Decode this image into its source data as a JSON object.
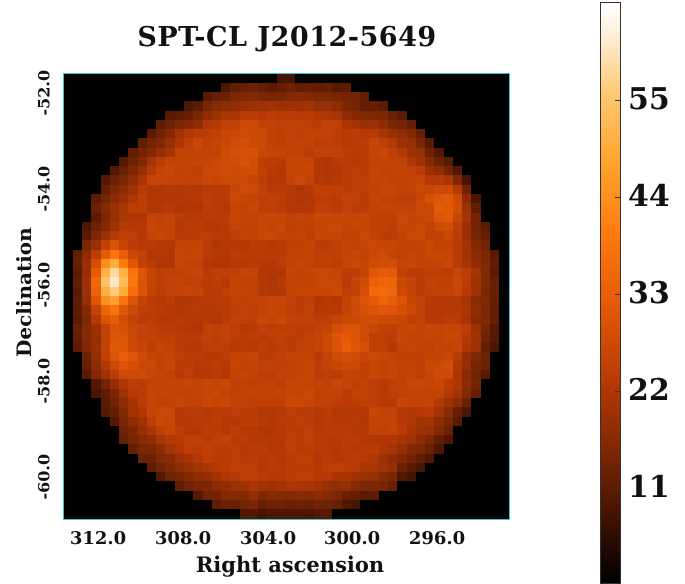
{
  "chart_data": {
    "type": "heatmap",
    "title": "SPT-CL J2012-5649",
    "xlabel": "Right ascension",
    "ylabel": "Declination",
    "x_ticks": [
      "312.0",
      "308.0",
      "304.0",
      "300.0",
      "296.0"
    ],
    "y_ticks": [
      "-52.0",
      "-54.0",
      "-56.0",
      "-58.0",
      "-60.0"
    ],
    "xlim": [
      313.8,
      292.2
    ],
    "ylim": [
      -61.6,
      -51.3
    ],
    "colorbar": {
      "ticks": [
        "11",
        "22",
        "33",
        "44",
        "55"
      ],
      "range": [
        0,
        60
      ],
      "colormap": "gist_heat"
    },
    "map": {
      "background": 14,
      "disk_level": 22,
      "disk_center": [
        303.0,
        -56.5
      ],
      "disk_radius_deg": [
        10.4,
        5.1
      ],
      "sources": [
        {
          "ra": 311.6,
          "dec": -56.1,
          "peak": 60
        },
        {
          "ra": 294.7,
          "dec": -54.1,
          "peak": 45
        },
        {
          "ra": 311.4,
          "dec": -57.7,
          "peak": 30
        },
        {
          "ra": 298.3,
          "dec": -56.4,
          "peak": 32
        },
        {
          "ra": 300.2,
          "dec": -57.6,
          "peak": 28
        },
        {
          "ra": 305.0,
          "dec": -53.2,
          "peak": 26
        },
        {
          "ra": 294.7,
          "dec": -58.4,
          "peak": 25
        }
      ]
    }
  }
}
